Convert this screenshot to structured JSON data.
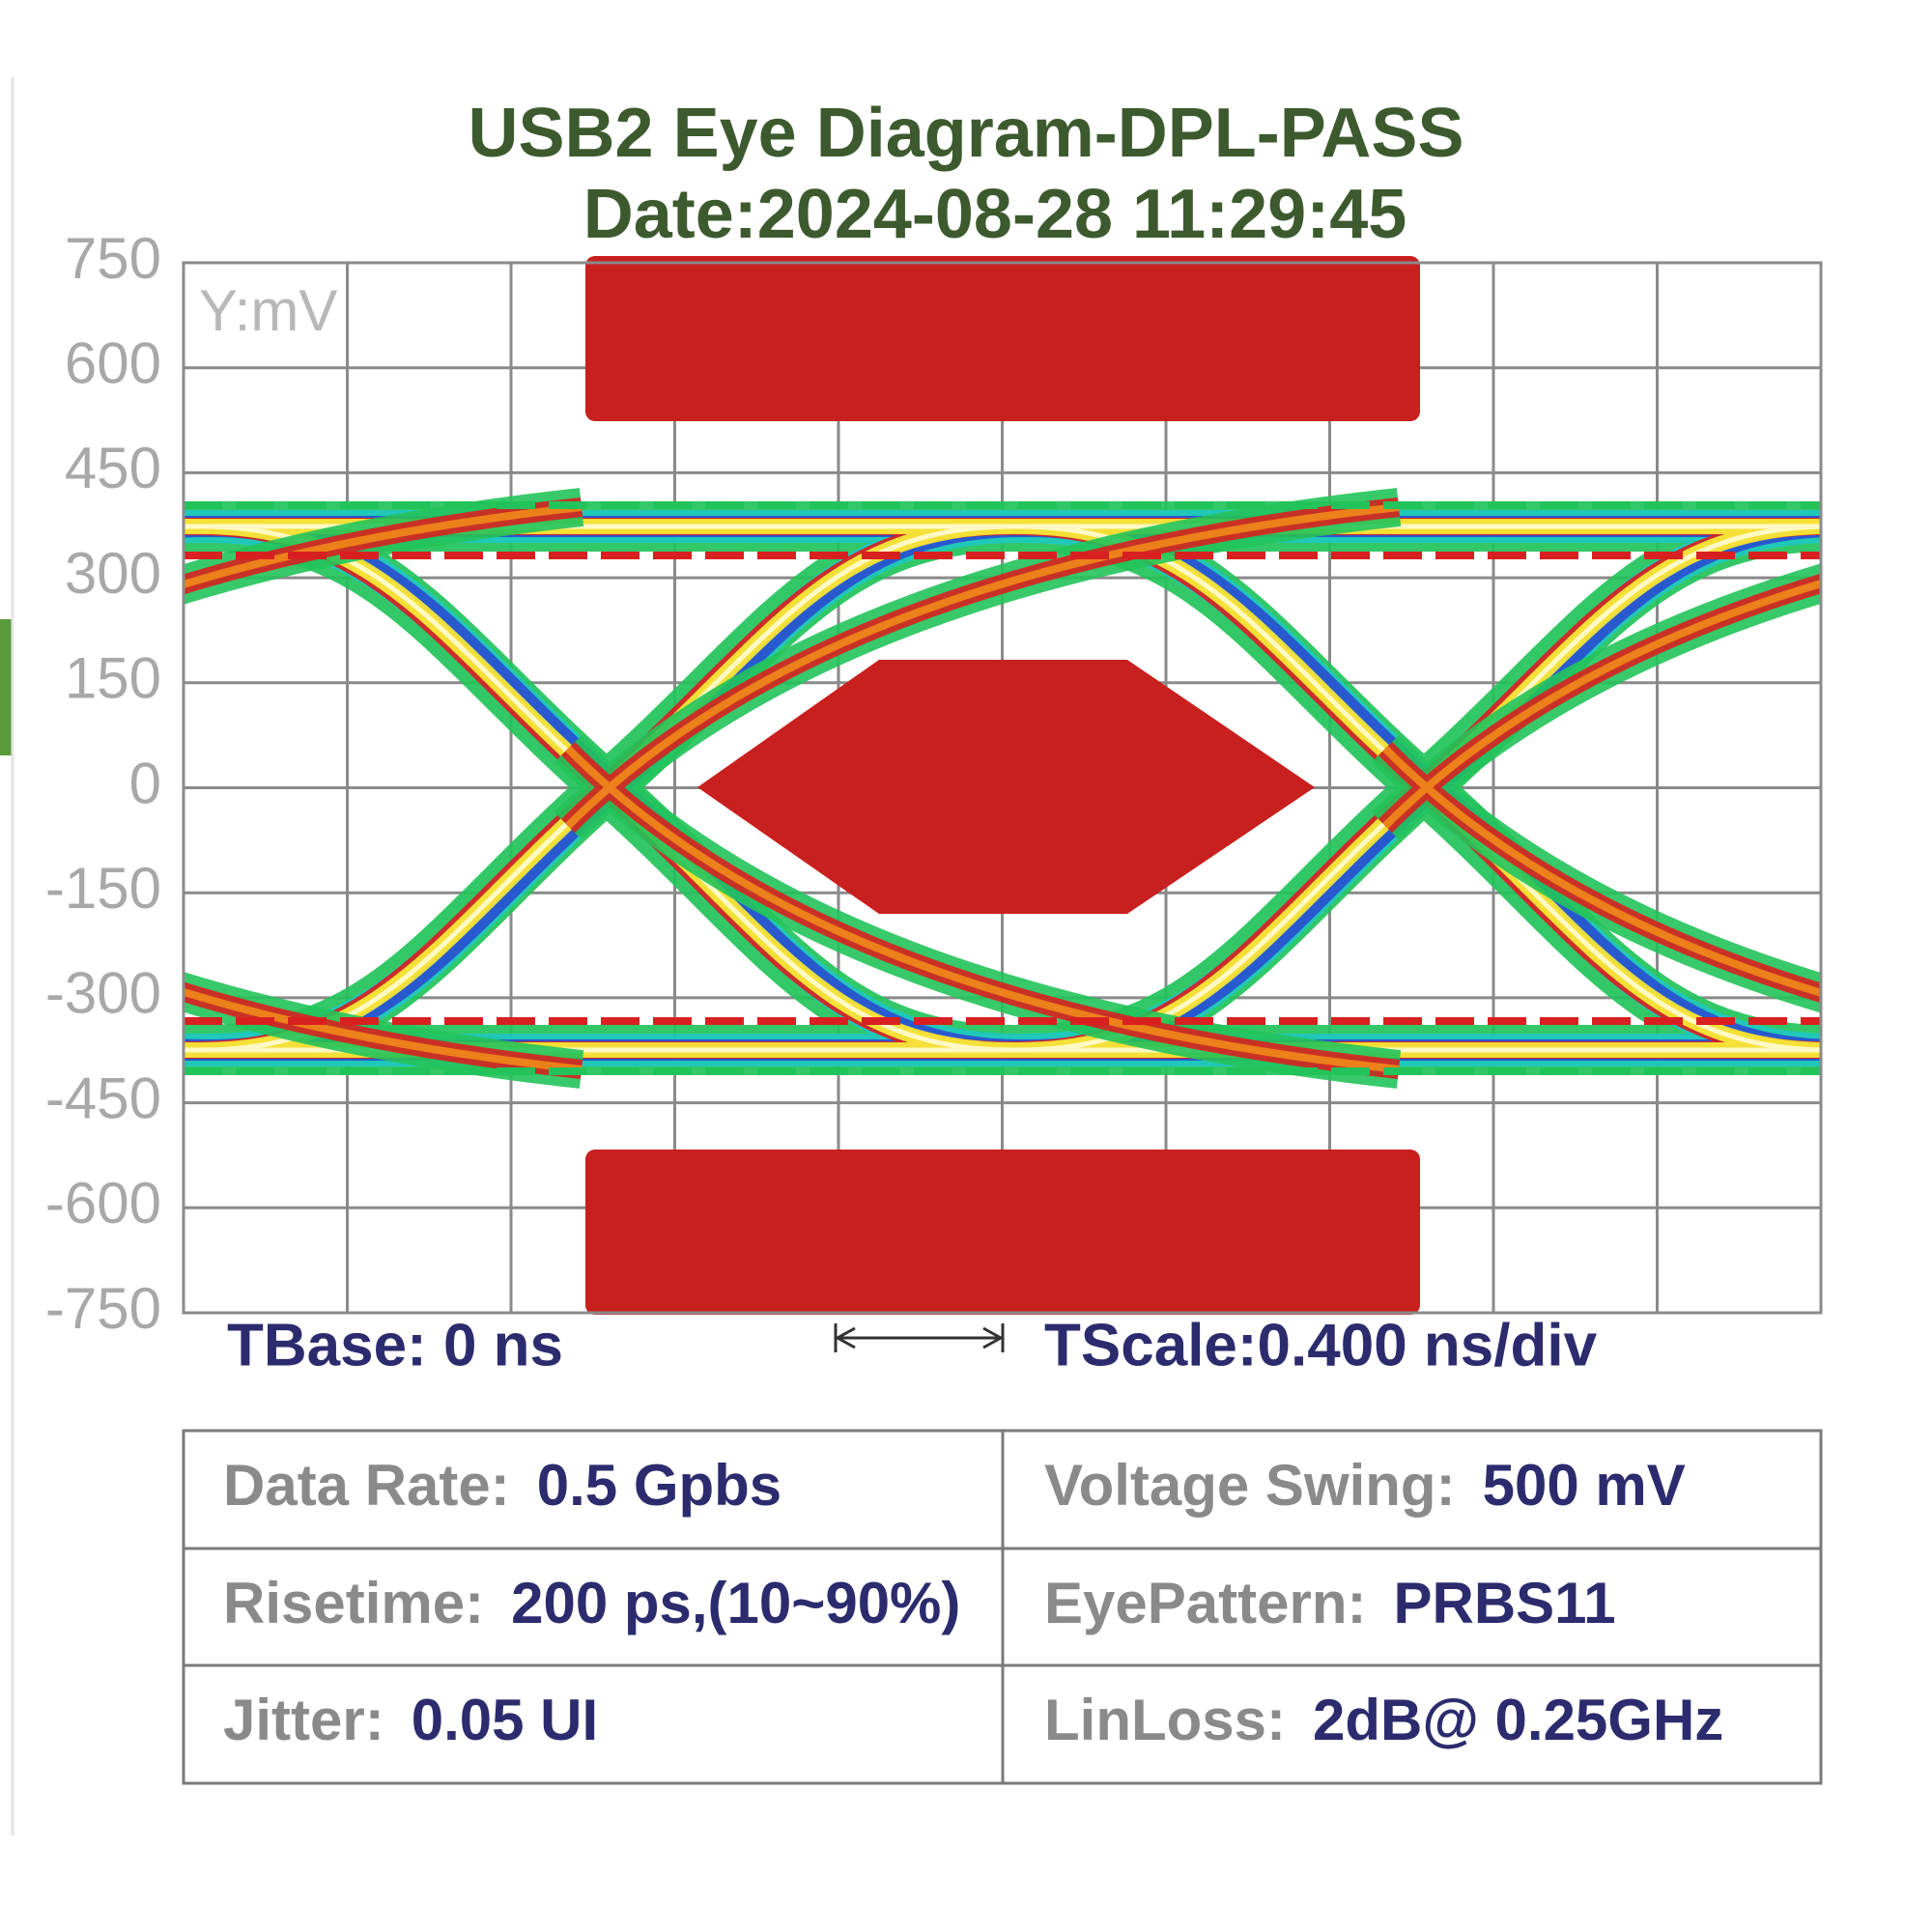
{
  "chart_data": {
    "type": "eye",
    "title": "USB2 Eye Diagram-DPL-PASS",
    "subtitle": "Date:2024-08-28 11:29:45",
    "y_label": "Y:mV",
    "ylim": [
      -750,
      750
    ],
    "yticks": [
      750,
      600,
      450,
      300,
      150,
      0,
      -150,
      -300,
      -450,
      -600,
      -750
    ],
    "grid": true,
    "tbase": "TBase: 0 ns",
    "tscale": "TScale:0.400 ns/div"
  },
  "info_table": {
    "rows": [
      [
        {
          "label": "Data Rate:",
          "value": "0.5 Gpbs"
        },
        {
          "label": "Voltage Swing:",
          "value": "500 mV"
        }
      ],
      [
        {
          "label": "Risetime:",
          "value": "200 ps,(10~90%)"
        },
        {
          "label": "EyePattern:",
          "value": "PRBS11"
        }
      ],
      [
        {
          "label": "Jitter:",
          "value": "0.05 UI"
        },
        {
          "label": "LinLoss:",
          "value": "2dB@ 0.25GHz"
        }
      ]
    ]
  }
}
